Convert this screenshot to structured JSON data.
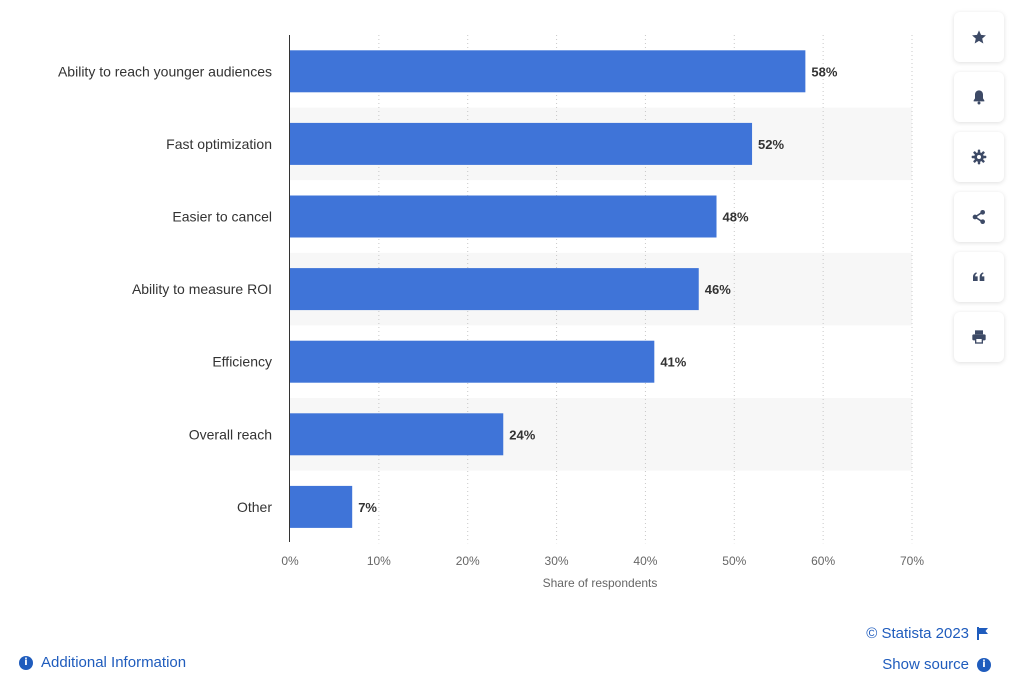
{
  "chart_data": {
    "type": "bar",
    "orientation": "horizontal",
    "categories": [
      "Ability to reach younger audiences",
      "Fast optimization",
      "Easier to cancel",
      "Ability to measure ROI",
      "Efficiency",
      "Overall reach",
      "Other"
    ],
    "values": [
      58,
      52,
      48,
      46,
      41,
      24,
      7
    ],
    "value_labels": [
      "58%",
      "52%",
      "48%",
      "46%",
      "41%",
      "24%",
      "7%"
    ],
    "xlabel": "Share of respondents",
    "ylabel": "",
    "xlim": [
      0,
      70
    ],
    "ticks": [
      0,
      10,
      20,
      30,
      40,
      50,
      60,
      70
    ],
    "tick_labels": [
      "0%",
      "10%",
      "20%",
      "30%",
      "40%",
      "50%",
      "60%",
      "70%"
    ],
    "grid": "vertical dotted",
    "bar_color": "#3f74d8"
  },
  "toolbar": {
    "icons": [
      "star-icon",
      "bell-icon",
      "gear-icon",
      "share-icon",
      "quote-icon",
      "print-icon"
    ]
  },
  "footer": {
    "additional_info": "Additional Information",
    "copyright": "© Statista 2023",
    "show_source": "Show source"
  },
  "colors": {
    "link": "#1f5cbd",
    "band": "#f7f7f7",
    "icon": "#3d4a66"
  }
}
